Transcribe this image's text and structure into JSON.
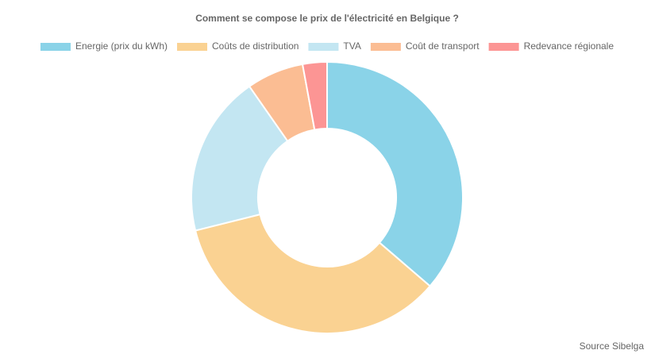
{
  "chart_data": {
    "type": "doughnut",
    "title": "Comment se compose le prix de l'électricité en Belgique ?",
    "categories": [
      "Energie (prix du kWh)",
      "Coûts de distribution",
      "TVA",
      "Coût de transport",
      "Redevance régionale"
    ],
    "values": [
      36.3,
      34.8,
      19.2,
      6.8,
      2.9
    ],
    "colors": [
      "#8ad3e8",
      "#fad292",
      "#c3e6f2",
      "#fbbd93",
      "#fc9594"
    ],
    "legend": "top",
    "source": "Source Sibelga"
  }
}
